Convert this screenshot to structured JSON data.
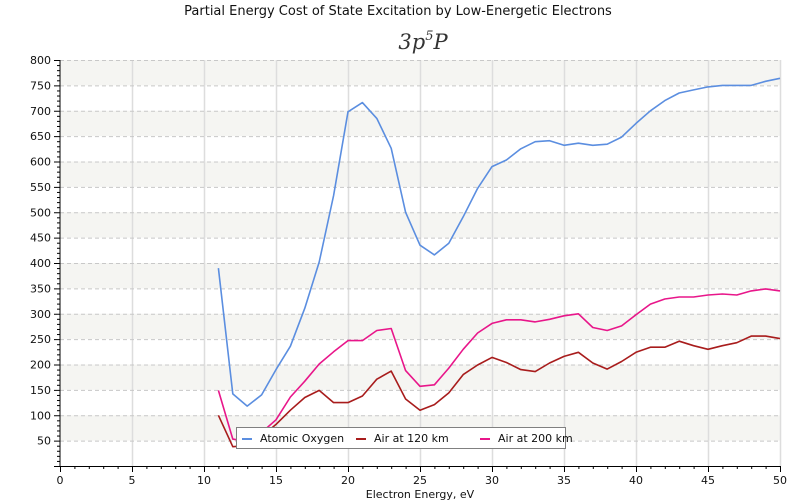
{
  "chart_data": {
    "type": "line",
    "title": "Partial Energy Cost of State Excitation by Low-Energetic Electrons",
    "subtitle_base": "3p",
    "subtitle_sup": "5",
    "subtitle_tail": "P",
    "xlabel": "Electron Energy, eV",
    "ylabel": "",
    "xlim": [
      0,
      50
    ],
    "ylim": [
      0,
      800
    ],
    "x_ticks": [
      0,
      5,
      10,
      15,
      20,
      25,
      30,
      35,
      40,
      45,
      50
    ],
    "x_tick_labels": [
      "0",
      "5",
      "10",
      "15",
      "20",
      "25",
      "30",
      "35",
      "40",
      "45",
      "50"
    ],
    "y_ticks": [
      50,
      100,
      150,
      200,
      250,
      300,
      350,
      400,
      450,
      500,
      550,
      600,
      650,
      700,
      750,
      800
    ],
    "y_tick_labels": [
      "50",
      "100",
      "150",
      "200",
      "250",
      "300",
      "350",
      "400",
      "450",
      "500",
      "550",
      "600",
      "650",
      "700",
      "750",
      "800"
    ],
    "grid": true,
    "legend_position": "bottom-center",
    "x": [
      11,
      12,
      13,
      14,
      15,
      16,
      17,
      18,
      19,
      20,
      21,
      22,
      23,
      24,
      25,
      26,
      27,
      28,
      29,
      30,
      31,
      32,
      33,
      34,
      35,
      36,
      37,
      38,
      39,
      40,
      41,
      42,
      43,
      44,
      45,
      46,
      47,
      48,
      49,
      50
    ],
    "series": [
      {
        "name": "Atomic Oxygen",
        "color": "#5b8ee0",
        "values": [
          390,
          142,
          118,
          140,
          190,
          236,
          311,
          402,
          533,
          698,
          716,
          685,
          626,
          500,
          435,
          416,
          439,
          491,
          547,
          590,
          603,
          625,
          639,
          641,
          632,
          636,
          632,
          634,
          648,
          675,
          700,
          720,
          735,
          741,
          747,
          750,
          750,
          750,
          758,
          764
        ]
      },
      {
        "name": "Air at 120 km",
        "color": "#a81c1c",
        "values": [
          100,
          38,
          40,
          58,
          82,
          110,
          135,
          149,
          125,
          125,
          138,
          171,
          187,
          132,
          110,
          121,
          144,
          180,
          199,
          214,
          204,
          190,
          186,
          203,
          216,
          224,
          203,
          191,
          206,
          224,
          234,
          234,
          246,
          237,
          230,
          237,
          243,
          256,
          256,
          251
        ]
      },
      {
        "name": "Air at 200 km",
        "color": "#e8168a",
        "values": [
          149,
          53,
          48,
          66,
          91,
          136,
          167,
          201,
          225,
          247,
          247,
          267,
          271,
          188,
          157,
          160,
          193,
          230,
          262,
          281,
          288,
          288,
          284,
          289,
          296,
          300,
          273,
          267,
          276,
          298,
          319,
          329,
          333,
          333,
          337,
          339,
          337,
          345,
          349,
          345
        ]
      }
    ]
  },
  "style": {
    "band_color": "#f5f5f2",
    "grid_color": "#c8c8c8",
    "axis_color": "#000000",
    "legend_border": "#808080"
  }
}
